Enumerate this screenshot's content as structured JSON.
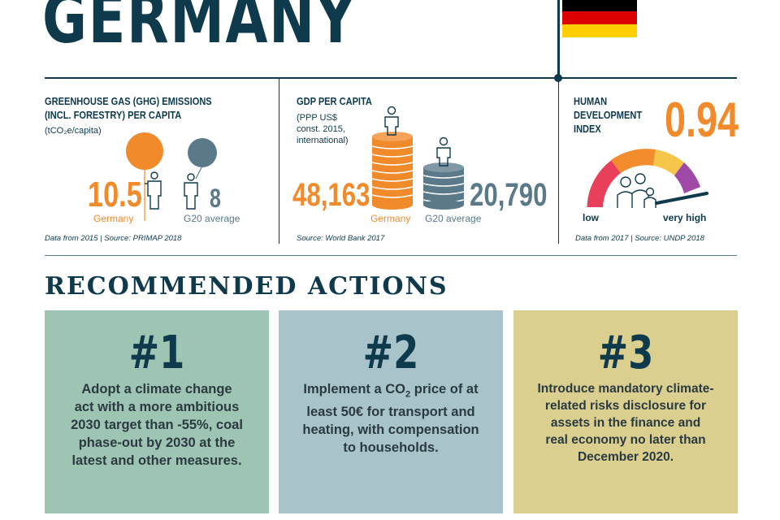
{
  "header": {
    "title": "GERMANY",
    "flag": {
      "colors": [
        "#000000",
        "#dd0000",
        "#ffce00"
      ]
    }
  },
  "ghg": {
    "label_line1": "GREENHOUSE GAS (GHG) EMISSIONS",
    "label_line2": "(INCL. FORESTRY) PER CAPITA",
    "unit": "(tCO₂e/capita)",
    "germany_value": "10.5",
    "g20_value": "8",
    "germany_label": "Germany",
    "g20_label": "G20 average",
    "source": "Data from 2015 | Source: PRIMAP 2018"
  },
  "gdp": {
    "label": "GDP PER CAPITA",
    "sub_line1": "(PPP US$",
    "sub_line2": "const. 2015,",
    "sub_line3": "international)",
    "germany_value": "48,163",
    "g20_value": "20,790",
    "germany_label": "Germany",
    "g20_label": "G20 average",
    "source": "Source: World Bank 2017"
  },
  "hdi": {
    "label_line1": "HUMAN",
    "label_line2": "DEVELOPMENT",
    "label_line3": "INDEX",
    "value": "0.94",
    "low_label": "low",
    "high_label": "very high",
    "source": "Data from 2017 | Source: UNDP 2018"
  },
  "actions": {
    "title": "RECOMMENDED ACTIONS",
    "cards": [
      {
        "num": "#1",
        "color": "#9ec4b4",
        "lines": [
          "Adopt a climate change",
          "act with a more ambitious",
          "2030 target than -55%, coal",
          "phase-out by 2030 at the",
          "latest and other measures."
        ]
      },
      {
        "num": "#2",
        "color": "#a9c3cb",
        "line1_pre": "Implement a CO",
        "line1_sub": "2",
        "line1_post": " price of at",
        "lines": [
          "least 50€ for transport and",
          "heating, with compensation",
          "to households."
        ]
      },
      {
        "num": "#3",
        "color": "#dacf8e",
        "lines": [
          "Introduce mandatory climate-",
          "related risks disclosure for",
          "assets in the finance and",
          "real economy no later than",
          "December 2020."
        ]
      }
    ]
  }
}
